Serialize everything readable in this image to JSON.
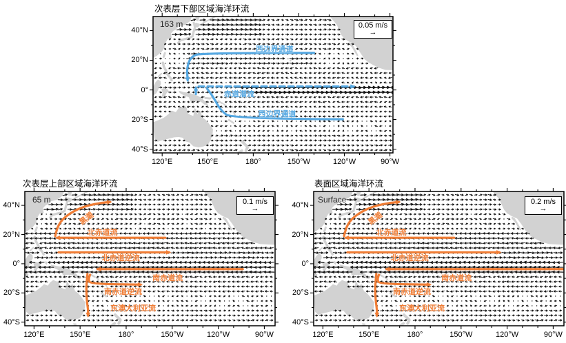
{
  "colors": {
    "background": "#ffffff",
    "land": "#d2d2d2",
    "vector": "#141414",
    "axis": "#000000",
    "blue_current": "#55a8e2",
    "orange_current": "#f07d35"
  },
  "icons": {
    "reference_arrow": "→"
  },
  "chart_data": {
    "type": "quiver_map_multi",
    "projection": {
      "lon_range_deg_east": [
        114,
        277
      ],
      "lat_range": [
        -42.5,
        49.5
      ]
    },
    "panels": [
      {
        "id": "subsurface-lower",
        "title": "次表层下部区域海洋环流",
        "depth_label": "163 m",
        "reference_vector": {
          "label": "0.05 m/s"
        },
        "current_color": "#55a8e2",
        "x_ticks": [
          {
            "label": "120°E",
            "lon": 120
          },
          {
            "label": "150°E",
            "lon": 150
          },
          {
            "label": "180°",
            "lon": 180
          },
          {
            "label": "150°W",
            "lon": 210
          },
          {
            "label": "120°W",
            "lon": 240
          },
          {
            "label": "90°W",
            "lon": 270
          }
        ],
        "y_ticks": [
          {
            "label": "40°N",
            "lat": 40
          },
          {
            "label": "20°N",
            "lat": 20
          },
          {
            "label": "0°",
            "lat": 0
          },
          {
            "label": "20°S",
            "lat": -20
          },
          {
            "label": "40°S",
            "lat": -40
          }
        ],
        "flow_bands": [
          {
            "lat": [
              36,
              49.5
            ],
            "lon": [
              114,
              185
            ],
            "u": 0.75,
            "v": 0.06
          },
          {
            "lat": [
              36,
              49.5
            ],
            "lon": [
              185,
              277
            ],
            "u": 0.35,
            "v": 0
          },
          {
            "lat": [
              26,
              36
            ],
            "u": 0.25,
            "v": 0
          },
          {
            "lat": [
              17,
              26
            ],
            "lon": [
              135,
              220
            ],
            "u": 0.5,
            "v": 0
          },
          {
            "lat": [
              17,
              26
            ],
            "lon": [
              220,
              277
            ],
            "u": 0.1,
            "v": 0
          },
          {
            "lat": [
              8,
              17
            ],
            "u": -0.3,
            "v": 0
          },
          {
            "lat": [
              3,
              8
            ],
            "u": -0.2,
            "v": 0
          },
          {
            "lat": [
              -3,
              3
            ],
            "lon": [
              114,
              170
            ],
            "u": 0.35,
            "v": 0
          },
          {
            "lat": [
              -3,
              3
            ],
            "lon": [
              170,
              277
            ],
            "u": 1.5,
            "v": 0
          },
          {
            "lat": [
              -9,
              -3
            ],
            "u": -0.3,
            "v": 0
          },
          {
            "lat": [
              -20,
              -9
            ],
            "u": -0.25,
            "v": 0
          },
          {
            "lat": [
              -30,
              -20
            ],
            "u": -0.1,
            "v": 0
          },
          {
            "lat": [
              -42.5,
              -30
            ],
            "u": 0.3,
            "v": 0
          }
        ],
        "currents": [
          {
            "name": "西边界通道",
            "dashed": false,
            "arrow": "end",
            "path": [
              [
                220,
                25
              ],
              [
                146,
                25
              ],
              [
                139,
                22.5
              ],
              [
                136.2,
                15
              ],
              [
                136.8,
                6.5
              ]
            ],
            "label": {
              "lon": 194,
              "lat": 27.5,
              "rot": 0
            }
          },
          {
            "name": "赤道潜流",
            "dashed": false,
            "arrow": "end",
            "path": [
              [
                142.2,
                -2.8
              ],
              [
                142.2,
                1.5
              ]
            ],
            "label": null
          },
          {
            "name": "赤道潜流",
            "dashed": true,
            "arrow": "end",
            "path": [
              [
                144,
                2.3
              ],
              [
                246,
                2.3
              ]
            ],
            "label": {
              "lon": 170.7,
              "lat": -2.6,
              "rot": 0
            }
          },
          {
            "name": "西边界通道",
            "dashed": false,
            "arrow": "none",
            "path": [
              [
                239,
                -19.8
              ],
              [
                166,
                -19.5
              ],
              [
                158.5,
                -13.8
              ],
              [
                153.5,
                -4.5
              ],
              [
                149.5,
                1
              ]
            ],
            "label": {
              "lon": 195.7,
              "lat": -16.2,
              "rot": 0
            }
          }
        ]
      },
      {
        "id": "subsurface-upper",
        "title": "次表层上部区域海洋环流",
        "depth_label": "65 m",
        "reference_vector": {
          "label": "0.1 m/s"
        },
        "current_color": "#f07d35",
        "x_ticks": [
          {
            "label": "120°E",
            "lon": 120
          },
          {
            "label": "150°E",
            "lon": 150
          },
          {
            "label": "180°",
            "lon": 180
          },
          {
            "label": "150°W",
            "lon": 210
          },
          {
            "label": "120°W",
            "lon": 240
          },
          {
            "label": "90°W",
            "lon": 270
          }
        ],
        "y_ticks": [
          {
            "label": "40°N",
            "lat": 40
          },
          {
            "label": "20°N",
            "lat": 20
          },
          {
            "label": "0°",
            "lat": 0
          },
          {
            "label": "20°S",
            "lat": -20
          },
          {
            "label": "40°S",
            "lat": -40
          }
        ],
        "flow_bands": [
          {
            "lat": [
              36,
              49.5
            ],
            "lon": [
              114,
              185
            ],
            "u": 0.7,
            "v": 0.06
          },
          {
            "lat": [
              36,
              49.5
            ],
            "lon": [
              185,
              277
            ],
            "u": 0.3,
            "v": 0
          },
          {
            "lat": [
              24,
              36
            ],
            "u": 0.2,
            "v": 0
          },
          {
            "lat": [
              9,
              24
            ],
            "u": -0.55,
            "v": 0
          },
          {
            "lat": [
              3,
              9
            ],
            "u": 0.55,
            "v": 0
          },
          {
            "lat": [
              -8,
              3
            ],
            "u": -0.9,
            "v": 0
          },
          {
            "lat": [
              -20,
              -8
            ],
            "u": -0.35,
            "v": 0
          },
          {
            "lat": [
              -30,
              -20
            ],
            "u": -0.1,
            "v": 0
          },
          {
            "lat": [
              -42.5,
              -30
            ],
            "u": 0.3,
            "v": 0
          }
        ],
        "currents": [
          {
            "name": "黑潮",
            "dashed": false,
            "arrow": "end",
            "path": [
              [
                133.8,
                19
              ],
              [
                134.8,
                24
              ],
              [
                138,
                30
              ],
              [
                144,
                35
              ],
              [
                152,
                39
              ],
              [
                162,
                41.5
              ],
              [
                169.5,
                42.3
              ]
            ],
            "label": {
              "lon": 154,
              "lat": 31.3,
              "rot": -38
            }
          },
          {
            "name": "北赤道流",
            "dashed": false,
            "arrow": "end",
            "path": [
              [
                205.5,
                17.8
              ],
              [
                135,
                17.8
              ]
            ],
            "label": {
              "lon": 164.5,
              "lat": 21.5,
              "rot": 0
            }
          },
          {
            "name": "北赤道逆流",
            "dashed": false,
            "arrow": "end",
            "path": [
              [
                136,
                7.8
              ],
              [
                208,
                7.8
              ]
            ],
            "label": {
              "lon": 176.5,
              "lat": 4.3,
              "rot": 0
            }
          },
          {
            "name": "南赤道流",
            "dashed": false,
            "arrow": "end",
            "path": [
              [
                256,
                -3.7
              ],
              [
                161.5,
                -3.7
              ]
            ],
            "label": {
              "lon": 207,
              "lat": -9.3,
              "rot": 0
            }
          },
          {
            "name": "南赤道逆流",
            "dashed": false,
            "arrow": "end",
            "path": [
              [
                156.5,
                -7.5
              ],
              [
                155.2,
                -11
              ],
              [
                157.2,
                -13.8
              ],
              [
                189.5,
                -14.3
              ]
            ],
            "label": {
              "lon": 178,
              "lat": -18.8,
              "rot": 0
            }
          },
          {
            "name": "东澳大利亚流",
            "dashed": false,
            "arrow": "end",
            "path": [
              [
                154.8,
                -7
              ],
              [
                154,
                -15
              ],
              [
                154.3,
                -24.5
              ],
              [
                155.2,
                -31.5
              ],
              [
                155.2,
                -35.5
              ]
            ],
            "label": {
              "lon": 184.5,
              "lat": -30,
              "rot": 0
            }
          }
        ]
      },
      {
        "id": "surface",
        "title": "表面区域海洋环流",
        "depth_label": "Surface",
        "reference_vector": {
          "label": "0.2 m/s"
        },
        "current_color": "#f07d35",
        "x_ticks": [
          {
            "label": "120°E",
            "lon": 120
          },
          {
            "label": "150°E",
            "lon": 150
          },
          {
            "label": "180°",
            "lon": 180
          },
          {
            "label": "150°W",
            "lon": 210
          },
          {
            "label": "120°W",
            "lon": 240
          },
          {
            "label": "90°W",
            "lon": 270
          }
        ],
        "y_ticks": [
          {
            "label": "40°N",
            "lat": 40
          },
          {
            "label": "20°N",
            "lat": 20
          },
          {
            "label": "0°",
            "lat": 0
          },
          {
            "label": "20°S",
            "lat": -20
          },
          {
            "label": "40°S",
            "lat": -40
          }
        ],
        "flow_bands": [
          {
            "lat": [
              36,
              49.5
            ],
            "lon": [
              114,
              185
            ],
            "u": 0.8,
            "v": 0.07
          },
          {
            "lat": [
              36,
              49.5
            ],
            "lon": [
              185,
              277
            ],
            "u": 0.35,
            "v": 0
          },
          {
            "lat": [
              24,
              36
            ],
            "u": 0.22,
            "v": 0
          },
          {
            "lat": [
              9,
              24
            ],
            "u": -0.6,
            "v": 0
          },
          {
            "lat": [
              3,
              9
            ],
            "u": 0.6,
            "v": 0
          },
          {
            "lat": [
              -8,
              3
            ],
            "u": -1.0,
            "v": 0
          },
          {
            "lat": [
              -20,
              -8
            ],
            "u": -0.4,
            "v": 0
          },
          {
            "lat": [
              -30,
              -20
            ],
            "u": -0.1,
            "v": 0
          },
          {
            "lat": [
              -42.5,
              -30
            ],
            "u": 0.35,
            "v": 0
          }
        ],
        "currents": [
          {
            "name": "黑潮",
            "dashed": false,
            "arrow": "end",
            "path": [
              [
                133.8,
                19
              ],
              [
                134.8,
                24
              ],
              [
                138,
                30
              ],
              [
                144,
                35
              ],
              [
                152,
                39
              ],
              [
                162,
                41.5
              ],
              [
                169.5,
                42.3
              ]
            ],
            "label": {
              "lon": 154,
              "lat": 31.3,
              "rot": -38
            }
          },
          {
            "name": "北赤道流",
            "dashed": false,
            "arrow": "end",
            "path": [
              [
                205.5,
                17.8
              ],
              [
                135,
                17.8
              ]
            ],
            "label": {
              "lon": 164.5,
              "lat": 21.5,
              "rot": 0
            }
          },
          {
            "name": "北赤道逆流",
            "dashed": false,
            "arrow": "end",
            "path": [
              [
                136,
                7.8
              ],
              [
                235,
                7.8
              ]
            ],
            "label": {
              "lon": 176.5,
              "lat": 4.3,
              "rot": 0
            }
          },
          {
            "name": "南赤道流",
            "dashed": false,
            "arrow": "end",
            "path": [
              [
                276.5,
                -3.7
              ],
              [
                161.5,
                -3.7
              ]
            ],
            "label": {
              "lon": 207,
              "lat": -9.3,
              "rot": 0
            }
          },
          {
            "name": "南赤道逆流",
            "dashed": false,
            "arrow": "end",
            "path": [
              [
                156.5,
                -7.5
              ],
              [
                155.2,
                -11
              ],
              [
                157.2,
                -13.8
              ],
              [
                189.5,
                -14.3
              ]
            ],
            "label": {
              "lon": 178,
              "lat": -18.8,
              "rot": 0
            }
          },
          {
            "name": "东澳大利亚流",
            "dashed": false,
            "arrow": "end",
            "path": [
              [
                154.8,
                -7
              ],
              [
                154,
                -15
              ],
              [
                154.3,
                -24.5
              ],
              [
                155.2,
                -31.5
              ],
              [
                155.2,
                -35.5
              ]
            ],
            "label": {
              "lon": 184.5,
              "lat": -30,
              "rot": 0
            }
          }
        ]
      }
    ]
  }
}
